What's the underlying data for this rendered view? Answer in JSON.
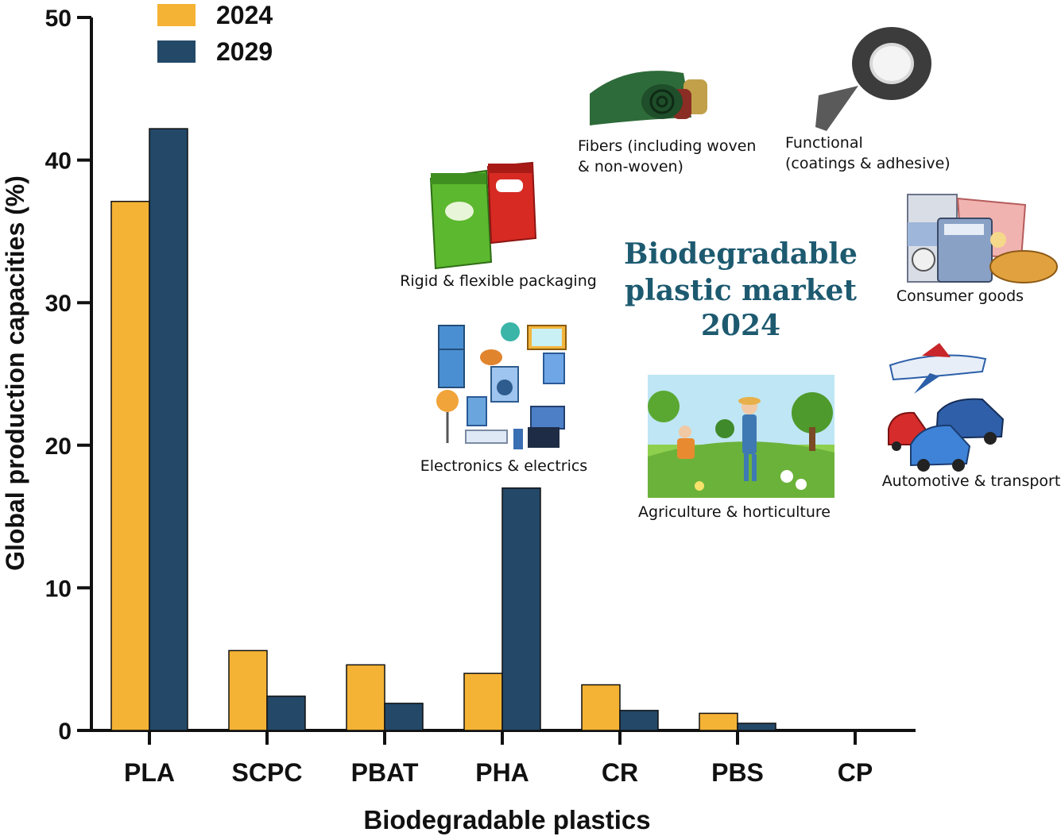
{
  "chart_data": {
    "type": "bar",
    "categories": [
      "PLA",
      "SCPC",
      "PBAT",
      "PHA",
      "CR",
      "PBS",
      "CP"
    ],
    "series": [
      {
        "name": "2024",
        "values": [
          37.1,
          5.6,
          4.6,
          4.0,
          3.2,
          1.2,
          0.0
        ],
        "color": "#f5b335"
      },
      {
        "name": "2029",
        "values": [
          42.2,
          2.4,
          1.9,
          17.0,
          1.4,
          0.5,
          0.0
        ],
        "color": "#234868"
      }
    ],
    "xlabel": "Biodegradable plastics",
    "ylabel": "Global production capacities (%)",
    "ylim": [
      0,
      50
    ],
    "yticks": [
      "0",
      "10",
      "20",
      "30",
      "40",
      "50"
    ],
    "legend": "top-left",
    "grid": false
  },
  "center_title": [
    "Biodegradable",
    "plastic market",
    "2024"
  ],
  "applications": [
    {
      "name": "packaging",
      "lines": [
        "Rigid & flexible packaging"
      ],
      "icon": "packaging-bags-icon"
    },
    {
      "name": "fibers",
      "lines": [
        "Fibers (including woven",
        "& non-woven)"
      ],
      "icon": "fabric-rolls-icon"
    },
    {
      "name": "functional",
      "lines": [
        "Functional",
        "(coatings & adhesive)"
      ],
      "icon": "tape-roll-icon"
    },
    {
      "name": "consumer-goods",
      "lines": [
        "Consumer goods"
      ],
      "icon": "consumer-goods-icon"
    },
    {
      "name": "electronics",
      "lines": [
        "Electronics & electrics"
      ],
      "icon": "appliances-icon"
    },
    {
      "name": "agriculture",
      "lines": [
        "Agriculture & horticulture"
      ],
      "icon": "farm-scene-icon"
    },
    {
      "name": "automotive",
      "lines": [
        "Automotive & transport"
      ],
      "icon": "vehicles-icon"
    }
  ]
}
